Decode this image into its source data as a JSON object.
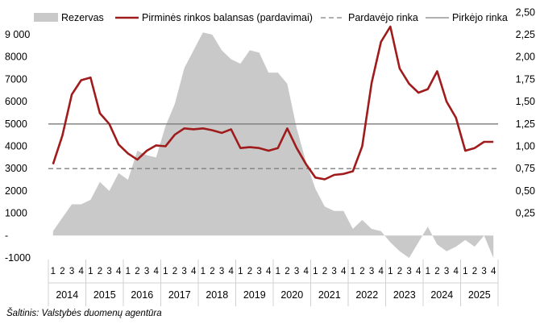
{
  "chart_data": {
    "type": "area+line",
    "title": "",
    "source": "Šaltinis: Valstybės duomenų agentūra",
    "legend": {
      "position": "top",
      "items": [
        {
          "key": "reserves",
          "label": "Rezervas",
          "kind": "area",
          "color": "#c9c9c9"
        },
        {
          "key": "balance",
          "label": "Pirminės rinkos balansas (pardavimai)",
          "kind": "line",
          "color": "#a01c1c"
        },
        {
          "key": "seller",
          "label": "Pardavėjo rinka",
          "kind": "dashed",
          "color": "#808080"
        },
        {
          "key": "buyer",
          "label": "Pirkėjo rinka",
          "kind": "solid",
          "color": "#808080"
        }
      ]
    },
    "left_axis": {
      "ylim": [
        -1000,
        9000
      ],
      "ticks": [
        -1000,
        "-",
        1000,
        2000,
        3000,
        4000,
        5000,
        6000,
        7000,
        8000,
        9000
      ],
      "tick_labels": [
        "-1000",
        "-",
        "1000",
        "2000",
        "3000",
        "4000",
        "5000",
        "6000",
        "7000",
        "8000",
        "9 000"
      ]
    },
    "right_axis": {
      "ylim": [
        0,
        2.5
      ],
      "tick_labels": [
        "",
        "0,25",
        "0,50",
        "0,75",
        "1,00",
        "1,25",
        "1,50",
        "1,75",
        "2,00",
        "2,25",
        "2,50"
      ]
    },
    "x_axis": {
      "quarter_labels": [
        "1",
        "2",
        "3",
        "4"
      ],
      "years": [
        "2014",
        "2015",
        "2016",
        "2017",
        "2018",
        "2019",
        "2020",
        "2021",
        "2022",
        "2023",
        "2024",
        "2025"
      ]
    },
    "reference_lines": {
      "seller_market_right_value": 0.75,
      "buyer_market_right_value": 1.25
    },
    "series": [
      {
        "name": "Rezervas",
        "axis": "left",
        "values": [
          200,
          800,
          1400,
          1400,
          1600,
          2400,
          2000,
          2800,
          2500,
          3800,
          3600,
          3500,
          4900,
          5900,
          7500,
          8300,
          9100,
          9000,
          8300,
          7900,
          7700,
          8300,
          8200,
          7300,
          7300,
          6800,
          4800,
          3300,
          2100,
          1300,
          1100,
          1100,
          300,
          700,
          300,
          200,
          -300,
          -700,
          -1000,
          -300,
          400,
          -400,
          -700,
          -500,
          -200,
          -500,
          0,
          -1000
        ]
      },
      {
        "name": "Pirminės rinkos balansas (pardavimai)",
        "axis": "right",
        "values": [
          0.8,
          1.12,
          1.58,
          1.74,
          1.77,
          1.37,
          1.25,
          1.02,
          0.92,
          0.85,
          0.95,
          1.01,
          1.0,
          1.13,
          1.2,
          1.19,
          1.2,
          1.18,
          1.15,
          1.19,
          0.98,
          0.99,
          0.98,
          0.95,
          0.98,
          1.2,
          0.98,
          0.8,
          0.65,
          0.63,
          0.68,
          0.69,
          0.72,
          1.0,
          1.71,
          2.17,
          2.34,
          1.87,
          1.7,
          1.6,
          1.64,
          1.84,
          1.5,
          1.32,
          0.95,
          0.98,
          1.05,
          1.05
        ]
      }
    ]
  }
}
